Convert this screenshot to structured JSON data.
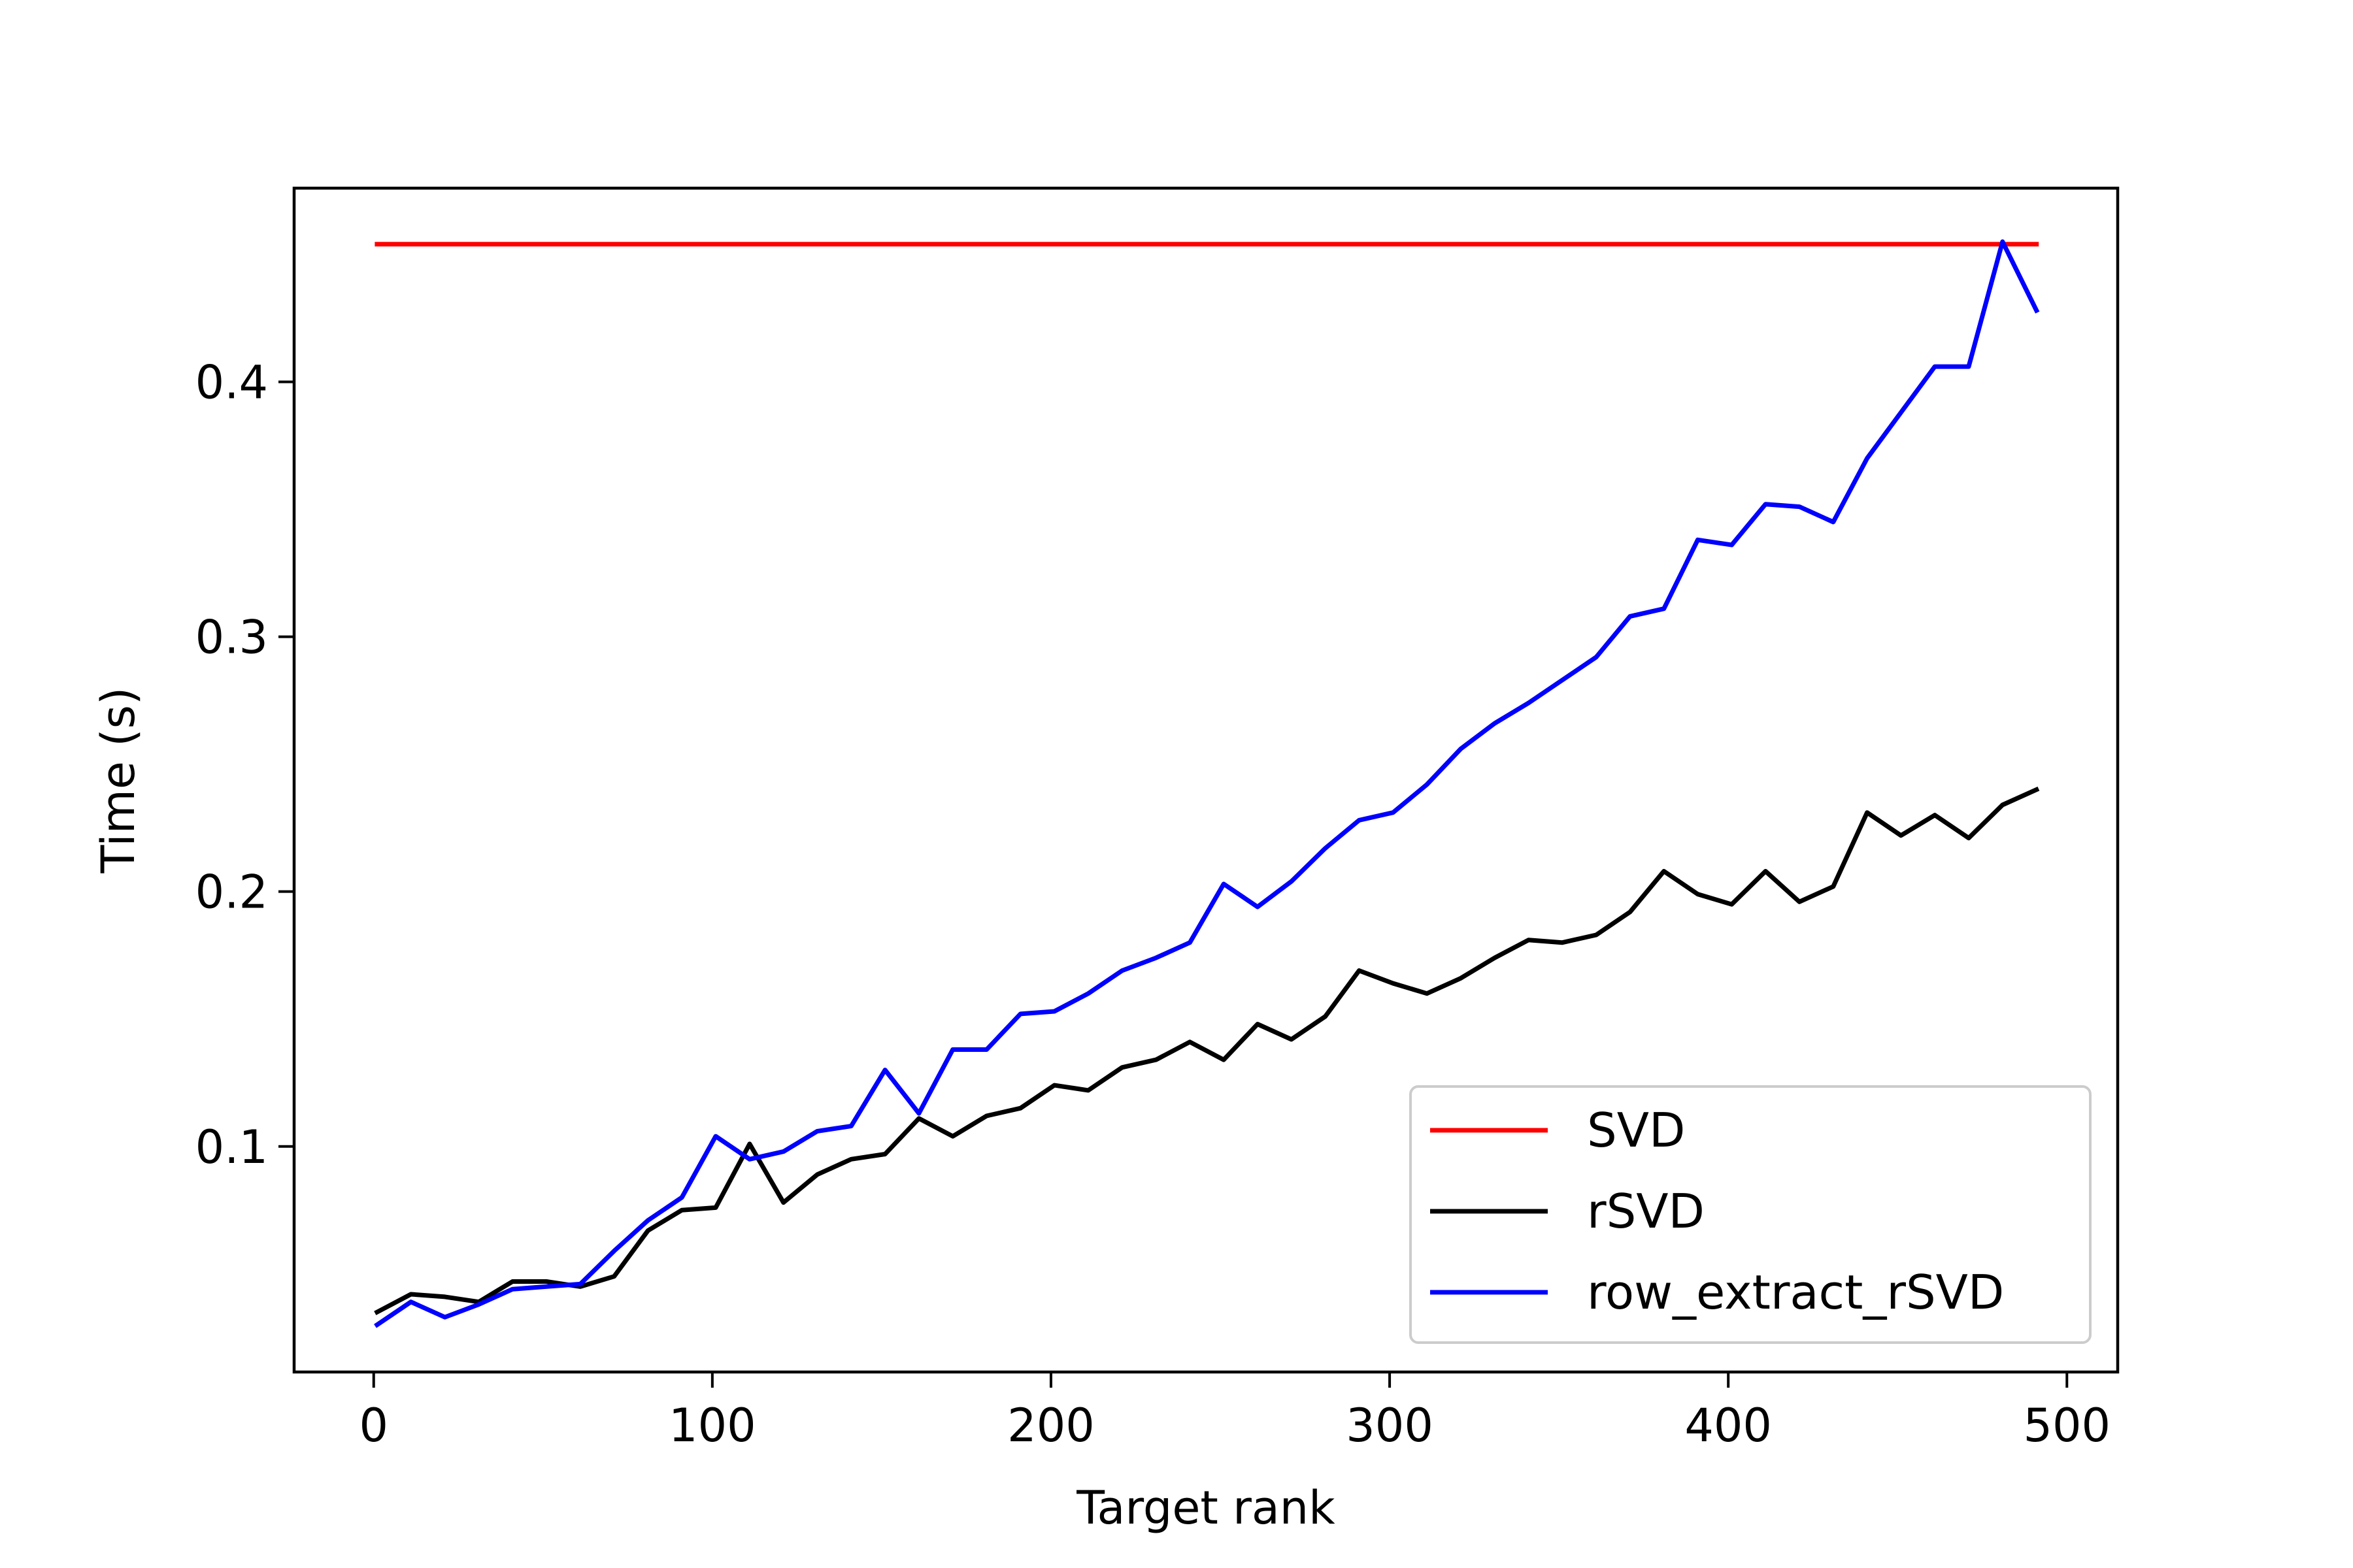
{
  "chart_data": {
    "type": "line",
    "xlabel": "Target rank",
    "ylabel": "Time (s)",
    "xlim": [
      -23.5,
      515
    ],
    "ylim": [
      0.0115,
      0.476
    ],
    "xticks": [
      0,
      100,
      200,
      300,
      400,
      500
    ],
    "yticks": [
      0.1,
      0.2,
      0.3,
      0.4
    ],
    "xtick_labels": [
      "0",
      "100",
      "200",
      "300",
      "400",
      "500"
    ],
    "ytick_labels": [
      "0.1",
      "0.2",
      "0.3",
      "0.4"
    ],
    "grid": false,
    "legend_position": "lower-right",
    "x": [
      1,
      11,
      21,
      31,
      41,
      51,
      61,
      71,
      81,
      91,
      101,
      111,
      121,
      131,
      141,
      151,
      161,
      171,
      181,
      191,
      201,
      211,
      221,
      231,
      241,
      251,
      261,
      271,
      281,
      291,
      301,
      311,
      321,
      331,
      341,
      351,
      361,
      371,
      381,
      391,
      401,
      411,
      421,
      431,
      441,
      451,
      461,
      471,
      481,
      491
    ],
    "series": [
      {
        "name": "SVD",
        "color": "#ff0000",
        "values": [
          0.454,
          0.454,
          0.454,
          0.454,
          0.454,
          0.454,
          0.454,
          0.454,
          0.454,
          0.454,
          0.454,
          0.454,
          0.454,
          0.454,
          0.454,
          0.454,
          0.454,
          0.454,
          0.454,
          0.454,
          0.454,
          0.454,
          0.454,
          0.454,
          0.454,
          0.454,
          0.454,
          0.454,
          0.454,
          0.454,
          0.454,
          0.454,
          0.454,
          0.454,
          0.454,
          0.454,
          0.454,
          0.454,
          0.454,
          0.454,
          0.454,
          0.454,
          0.454,
          0.454,
          0.454,
          0.454,
          0.454,
          0.454,
          0.454,
          0.454
        ]
      },
      {
        "name": "rSVD",
        "color": "#000000",
        "values": [
          0.035,
          0.042,
          0.041,
          0.039,
          0.047,
          0.047,
          0.045,
          0.049,
          0.067,
          0.075,
          0.076,
          0.101,
          0.078,
          0.089,
          0.095,
          0.097,
          0.111,
          0.104,
          0.112,
          0.115,
          0.124,
          0.122,
          0.131,
          0.134,
          0.141,
          0.134,
          0.148,
          0.142,
          0.151,
          0.169,
          0.164,
          0.16,
          0.166,
          0.174,
          0.181,
          0.18,
          0.183,
          0.192,
          0.208,
          0.199,
          0.195,
          0.208,
          0.196,
          0.202,
          0.231,
          0.222,
          0.23,
          0.221,
          0.234,
          0.24
        ]
      },
      {
        "name": "row_extract_rSVD",
        "color": "#0000ff",
        "values": [
          0.03,
          0.039,
          0.033,
          0.038,
          0.044,
          0.045,
          0.046,
          0.059,
          0.071,
          0.08,
          0.104,
          0.095,
          0.098,
          0.106,
          0.108,
          0.13,
          0.113,
          0.138,
          0.138,
          0.152,
          0.153,
          0.16,
          0.169,
          0.174,
          0.18,
          0.203,
          0.194,
          0.204,
          0.217,
          0.228,
          0.231,
          0.242,
          0.256,
          0.266,
          0.274,
          0.283,
          0.292,
          0.308,
          0.311,
          0.338,
          0.336,
          0.352,
          0.351,
          0.345,
          0.37,
          0.388,
          0.406,
          0.406,
          0.455,
          0.428
        ]
      }
    ]
  }
}
